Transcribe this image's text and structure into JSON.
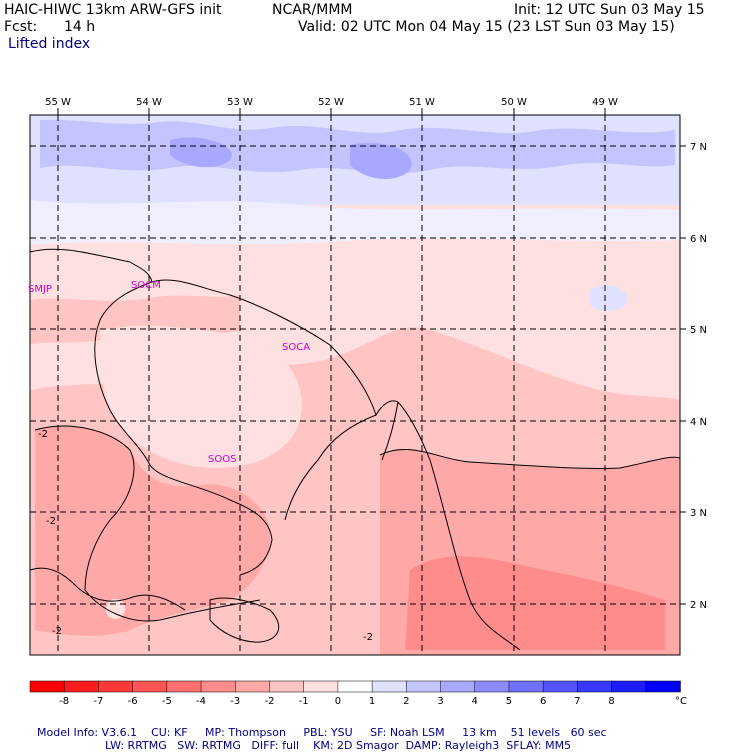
{
  "header": {
    "model_line": "HAIC-HIWC 13km ARW-GFS init",
    "org": "NCAR/MMM",
    "init": "Init: 12 UTC Sun 03 May 15",
    "fcst_label": "Fcst:",
    "fcst_value": "14 h",
    "valid": "Valid: 02 UTC Mon 04 May 15 (23 LST Sun 03 May 15)",
    "field": "Lifted index"
  },
  "map": {
    "lon_labels": [
      "55 W",
      "54 W",
      "53 W",
      "52 W",
      "51 W",
      "50 W",
      "49 W"
    ],
    "lat_labels": [
      "7 N",
      "6 N",
      "5 N",
      "4 N",
      "3 N",
      "2 N"
    ],
    "stations": [
      "SMJP",
      "SOCM",
      "SOCA",
      "SOOS"
    ],
    "contour_labels": [
      "-2",
      "-2",
      "-2",
      "-2"
    ]
  },
  "scale": {
    "labels": [
      "-8",
      "-7",
      "-6",
      "-5",
      "-4",
      "-3",
      "-2",
      "-1",
      "0",
      "1",
      "2",
      "3",
      "4",
      "5",
      "6",
      "7",
      "8"
    ],
    "unit": "°C",
    "colors": [
      "#ff0000",
      "#ff1c1c",
      "#ff3838",
      "#ff5454",
      "#ff7070",
      "#ff8c8c",
      "#ffa8a8",
      "#ffc4c4",
      "#ffe0e0",
      "#ffffff",
      "#e0e0ff",
      "#c4c4ff",
      "#a8a8ff",
      "#8c8cff",
      "#7070ff",
      "#5454ff",
      "#3838ff",
      "#1c1cff",
      "#0000ff"
    ]
  },
  "footer": {
    "line1": [
      "Model Info: V3.6.1",
      "CU: KF",
      "MP: Thompson",
      "PBL: YSU",
      "SF: Noah LSM",
      "13 km",
      "51 levels",
      "60 sec"
    ],
    "line2": [
      "LW: RRTMG",
      "SW: RRTMG",
      "DIFF: full",
      "KM: 2D Smagor",
      "DAMP: Rayleigh3",
      "SFLAY: MM5"
    ]
  }
}
